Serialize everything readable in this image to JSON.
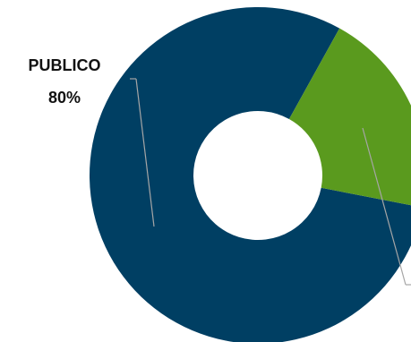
{
  "chart_data": {
    "type": "donut",
    "categories": [
      "PUBLICO",
      null
    ],
    "values": [
      80,
      20
    ],
    "value_labels": [
      "80%",
      null
    ],
    "colors": [
      "#003f63",
      "#5a9a1e"
    ]
  }
}
